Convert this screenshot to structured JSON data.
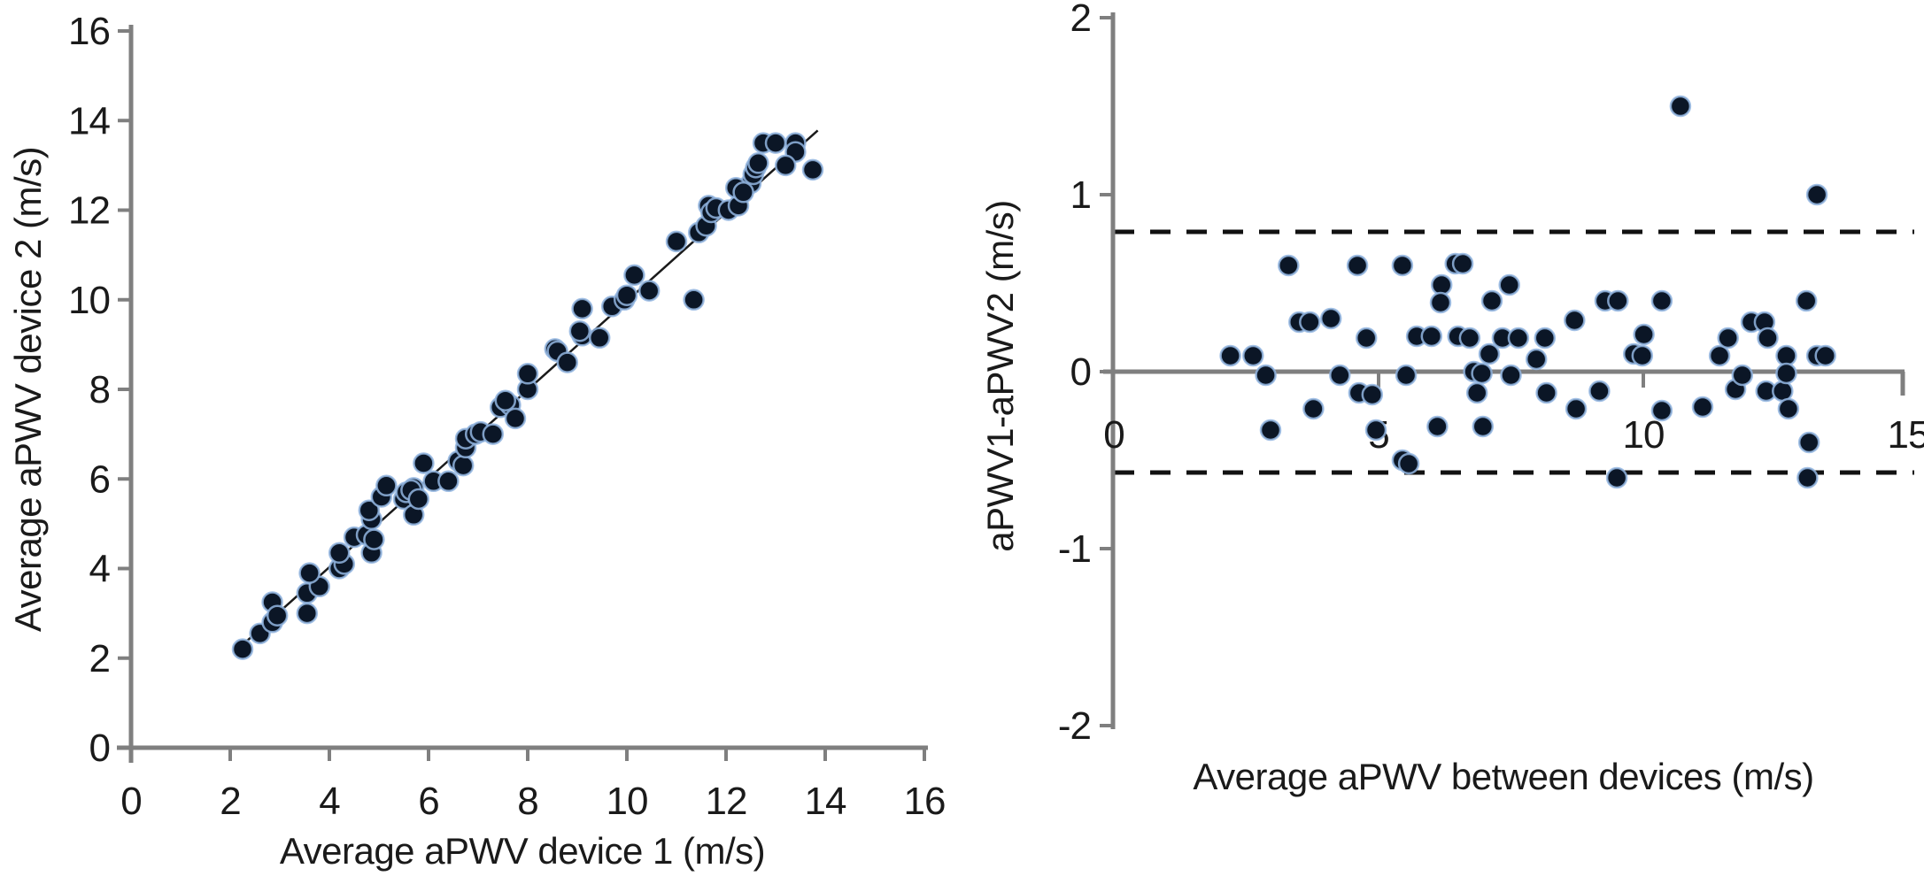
{
  "figure": {
    "background": "#ffffff",
    "description_left": "scatter correlation plot of two aPWV devices with identity trend line",
    "description_right": "Bland-Altman plot of device differences with limits of agreement"
  },
  "colors": {
    "axis": "#7f7f7f",
    "text": "#1a1a1a",
    "marker_fill": "#0b1626",
    "marker_stroke": "#92b5e0",
    "trend_line": "#1a1a1a",
    "dashed_line": "#111111"
  },
  "chart_data": [
    {
      "type": "scatter",
      "title": "",
      "xlabel": "Average aPWV device 1 (m/s)",
      "ylabel": "Average aPWV device 2 (m/s)",
      "xlim": [
        0,
        16
      ],
      "ylim": [
        0,
        16
      ],
      "xticks": [
        0,
        2,
        4,
        6,
        8,
        10,
        12,
        14,
        16
      ],
      "yticks": [
        0,
        2,
        4,
        6,
        8,
        10,
        12,
        14,
        16
      ],
      "grid": false,
      "legend": null,
      "trend_line": {
        "x1": 2.1,
        "y1": 2.15,
        "x2": 13.85,
        "y2": 13.78
      },
      "points": [
        [
          2.25,
          2.2
        ],
        [
          2.6,
          2.55
        ],
        [
          2.85,
          2.8
        ],
        [
          2.85,
          3.25
        ],
        [
          2.95,
          2.95
        ],
        [
          3.55,
          3.0
        ],
        [
          3.55,
          3.45
        ],
        [
          3.8,
          3.6
        ],
        [
          3.6,
          3.9
        ],
        [
          4.2,
          4.0
        ],
        [
          4.3,
          4.1
        ],
        [
          4.2,
          4.35
        ],
        [
          4.5,
          4.7
        ],
        [
          4.75,
          4.75
        ],
        [
          4.85,
          5.1
        ],
        [
          4.8,
          5.3
        ],
        [
          4.85,
          4.35
        ],
        [
          4.9,
          4.65
        ],
        [
          5.05,
          5.6
        ],
        [
          5.15,
          5.85
        ],
        [
          5.5,
          5.55
        ],
        [
          5.55,
          5.7
        ],
        [
          5.7,
          5.8
        ],
        [
          5.7,
          5.2
        ],
        [
          5.65,
          5.75
        ],
        [
          5.8,
          5.55
        ],
        [
          5.9,
          6.35
        ],
        [
          6.1,
          5.95
        ],
        [
          6.4,
          5.95
        ],
        [
          6.6,
          6.4
        ],
        [
          6.7,
          6.3
        ],
        [
          6.75,
          6.7
        ],
        [
          6.75,
          6.9
        ],
        [
          6.95,
          7.0
        ],
        [
          7.05,
          7.05
        ],
        [
          7.3,
          7.0
        ],
        [
          7.45,
          7.6
        ],
        [
          7.65,
          7.65
        ],
        [
          7.75,
          7.35
        ],
        [
          7.55,
          7.75
        ],
        [
          8.0,
          8.0
        ],
        [
          8.0,
          8.35
        ],
        [
          8.55,
          8.9
        ],
        [
          8.6,
          8.85
        ],
        [
          8.8,
          8.6
        ],
        [
          9.1,
          9.2
        ],
        [
          9.1,
          9.8
        ],
        [
          9.05,
          9.3
        ],
        [
          9.45,
          9.15
        ],
        [
          9.7,
          9.85
        ],
        [
          9.95,
          10.0
        ],
        [
          10.0,
          10.1
        ],
        [
          10.15,
          10.55
        ],
        [
          10.45,
          10.2
        ],
        [
          11.35,
          10.0
        ],
        [
          11.0,
          11.3
        ],
        [
          11.45,
          11.5
        ],
        [
          11.6,
          11.65
        ],
        [
          11.65,
          12.1
        ],
        [
          11.7,
          11.95
        ],
        [
          11.8,
          12.05
        ],
        [
          12.05,
          12.0
        ],
        [
          12.25,
          12.1
        ],
        [
          12.3,
          12.45
        ],
        [
          12.5,
          12.6
        ],
        [
          12.2,
          12.5
        ],
        [
          12.35,
          12.4
        ],
        [
          12.55,
          12.8
        ],
        [
          12.6,
          12.95
        ],
        [
          12.65,
          13.05
        ],
        [
          12.75,
          13.5
        ],
        [
          13.0,
          13.5
        ],
        [
          13.4,
          13.5
        ],
        [
          13.4,
          13.3
        ],
        [
          13.2,
          13.0
        ],
        [
          13.75,
          12.9
        ]
      ]
    },
    {
      "type": "scatter",
      "title": "",
      "xlabel": "Average  aPWV between devices (m/s)",
      "ylabel": "aPWV1-aPWV2  (m/s)",
      "xlim": [
        0,
        15
      ],
      "ylim": [
        -2,
        2
      ],
      "xticks": [
        0,
        5,
        10,
        15
      ],
      "yticks": [
        2,
        1,
        0,
        -1,
        -2
      ],
      "grid": false,
      "legend": null,
      "mean_line": 0.0,
      "upper_loa": 0.79,
      "lower_loa": -0.57,
      "points": [
        [
          2.2,
          0.09
        ],
        [
          2.63,
          0.09
        ],
        [
          2.87,
          -0.02
        ],
        [
          2.96,
          -0.33
        ],
        [
          3.3,
          0.6
        ],
        [
          3.5,
          0.28
        ],
        [
          3.7,
          0.28
        ],
        [
          3.77,
          -0.21
        ],
        [
          4.1,
          0.3
        ],
        [
          4.27,
          -0.02
        ],
        [
          4.6,
          0.6
        ],
        [
          4.63,
          -0.12
        ],
        [
          4.88,
          -0.13
        ],
        [
          4.77,
          0.19
        ],
        [
          4.95,
          -0.33
        ],
        [
          5.45,
          -0.5
        ],
        [
          5.57,
          -0.52
        ],
        [
          5.45,
          0.6
        ],
        [
          5.52,
          -0.02
        ],
        [
          5.72,
          0.2
        ],
        [
          6.0,
          0.2
        ],
        [
          6.11,
          -0.31
        ],
        [
          6.19,
          0.49
        ],
        [
          6.17,
          0.39
        ],
        [
          6.45,
          0.61
        ],
        [
          6.59,
          0.61
        ],
        [
          6.5,
          0.2
        ],
        [
          6.72,
          0.19
        ],
        [
          6.8,
          0.0
        ],
        [
          6.95,
          -0.01
        ],
        [
          6.86,
          -0.12
        ],
        [
          6.97,
          -0.31
        ],
        [
          7.14,
          0.4
        ],
        [
          7.09,
          0.1
        ],
        [
          7.34,
          0.19
        ],
        [
          7.47,
          0.49
        ],
        [
          7.64,
          0.19
        ],
        [
          7.5,
          -0.02
        ],
        [
          7.98,
          0.07
        ],
        [
          8.14,
          0.19
        ],
        [
          8.17,
          -0.12
        ],
        [
          8.7,
          0.29
        ],
        [
          8.73,
          -0.21
        ],
        [
          9.17,
          -0.11
        ],
        [
          9.28,
          0.4
        ],
        [
          9.52,
          0.4
        ],
        [
          9.5,
          -0.6
        ],
        [
          9.82,
          0.1
        ],
        [
          9.98,
          0.09
        ],
        [
          10.01,
          0.21
        ],
        [
          10.35,
          0.4
        ],
        [
          10.35,
          -0.22
        ],
        [
          10.7,
          1.5
        ],
        [
          11.12,
          -0.2
        ],
        [
          11.44,
          0.09
        ],
        [
          11.6,
          0.19
        ],
        [
          11.74,
          -0.1
        ],
        [
          11.87,
          -0.02
        ],
        [
          12.04,
          0.28
        ],
        [
          12.29,
          0.28
        ],
        [
          12.35,
          0.19
        ],
        [
          12.32,
          -0.11
        ],
        [
          12.63,
          -0.11
        ],
        [
          12.7,
          0.09
        ],
        [
          12.7,
          -0.01
        ],
        [
          12.74,
          -0.21
        ],
        [
          13.08,
          0.4
        ],
        [
          13.28,
          1.0
        ],
        [
          13.28,
          0.09
        ],
        [
          13.44,
          0.09
        ],
        [
          13.13,
          -0.4
        ],
        [
          13.1,
          -0.6
        ]
      ]
    }
  ]
}
